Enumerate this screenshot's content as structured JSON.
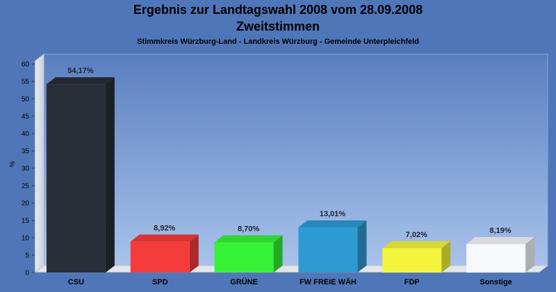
{
  "title_line1": "Ergebnis zur Landtagswahl 2008 vom 28.09.2008",
  "title_line2": "Zweitstimmen",
  "subtitle": "Stimmkreis Würzburg-Land - Landkreis Würzburg - Gemeinde Unterpleichfeld",
  "colors": {
    "background": "#4f76b8",
    "CSU": "#2a2e38",
    "SPD": "#f53c3c",
    "GRÜNE": "#36f236",
    "FW FREIE WÄH": "#2e9ad2",
    "FDP": "#f4f43c",
    "Sonstige": "#f6f8fb"
  },
  "chart_data": {
    "type": "bar",
    "title": "Ergebnis zur Landtagswahl 2008 vom 28.09.2008",
    "subtitle": "Zweitstimmen",
    "xlabel": "",
    "ylabel": "%",
    "ylim": [
      0,
      60
    ],
    "yticks": [
      0,
      5,
      10,
      15,
      20,
      25,
      30,
      35,
      40,
      45,
      50,
      55,
      60
    ],
    "grid": false,
    "categories": [
      "CSU",
      "SPD",
      "GRÜNE",
      "FW FREIE WÄH",
      "FDP",
      "Sonstige"
    ],
    "values": [
      54.17,
      8.92,
      8.7,
      13.01,
      7.02,
      8.19
    ],
    "value_labels": [
      "54,17%",
      "8,92%",
      "8,70%",
      "13,01%",
      "7,02%",
      "8,19%"
    ]
  }
}
